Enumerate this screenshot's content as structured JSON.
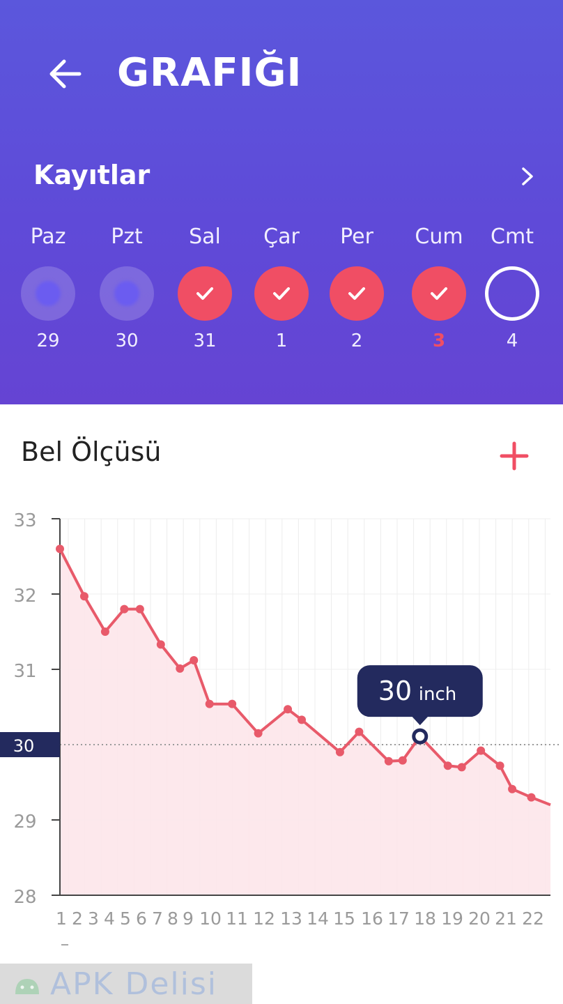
{
  "header": {
    "title": "GRAFIĞI",
    "records_label": "Kayıtlar"
  },
  "week": [
    {
      "name": "Paz",
      "date": "29",
      "status": "empty"
    },
    {
      "name": "Pzt",
      "date": "30",
      "status": "empty"
    },
    {
      "name": "Sal",
      "date": "31",
      "status": "done"
    },
    {
      "name": "Çar",
      "date": "1",
      "status": "done"
    },
    {
      "name": "Per",
      "date": "2",
      "status": "done"
    },
    {
      "name": "Cum",
      "date": "3",
      "status": "done",
      "today": true
    },
    {
      "name": "Cmt",
      "date": "4",
      "status": "future"
    }
  ],
  "section": {
    "title": "Bel Ölçüsü"
  },
  "colors": {
    "header_top": "#5b57dc",
    "accent": "#f04e64",
    "tooltip_bg": "#232a5e",
    "line": "#e85a6a",
    "area": "#fde6ea"
  },
  "chart_data": {
    "type": "area",
    "x": [
      1,
      2,
      3,
      4,
      5,
      6,
      7,
      8,
      9,
      10,
      11,
      12,
      13,
      14,
      15,
      16,
      17,
      18,
      19,
      20,
      21,
      22
    ],
    "x_tick_labels": [
      "1",
      "2",
      "3",
      "4",
      "5",
      "6",
      "7",
      "8",
      "9",
      "10",
      "11",
      "12",
      "13",
      "14",
      "15",
      "16",
      "17",
      "18",
      "19",
      "20",
      "21",
      "22"
    ],
    "series": [
      {
        "values": [
          [
            1,
            32.6
          ],
          [
            2.4,
            31.97
          ],
          [
            3.6,
            31.5
          ],
          [
            4.7,
            31.8
          ],
          [
            5.6,
            31.8
          ],
          [
            6.8,
            31.33
          ],
          [
            7.9,
            31.01
          ],
          [
            8.7,
            31.12
          ],
          [
            9.6,
            30.54
          ],
          [
            10.9,
            30.54
          ],
          [
            12.4,
            30.15
          ],
          [
            14.1,
            30.47
          ],
          [
            14.9,
            30.33
          ],
          [
            17.1,
            29.9
          ],
          [
            18.2,
            30.17
          ],
          [
            19.9,
            29.78
          ],
          [
            20.7,
            29.79
          ],
          [
            21.7,
            30.11
          ],
          [
            23.3,
            29.72
          ],
          [
            24.1,
            29.7
          ],
          [
            25.2,
            29.92
          ],
          [
            26.3,
            29.72
          ],
          [
            27.0,
            29.41
          ],
          [
            28.1,
            29.3
          ],
          [
            29.2,
            29.2
          ]
        ]
      }
    ],
    "yticks": [
      33,
      32,
      31,
      30,
      29,
      28
    ],
    "ylim": [
      28,
      33
    ],
    "reference_line": {
      "value": 30,
      "label": "30"
    },
    "tooltip": {
      "value": "30",
      "unit": "inch"
    },
    "grid": true,
    "extra_label": "–"
  },
  "watermark": {
    "text": "APK Delisi"
  }
}
